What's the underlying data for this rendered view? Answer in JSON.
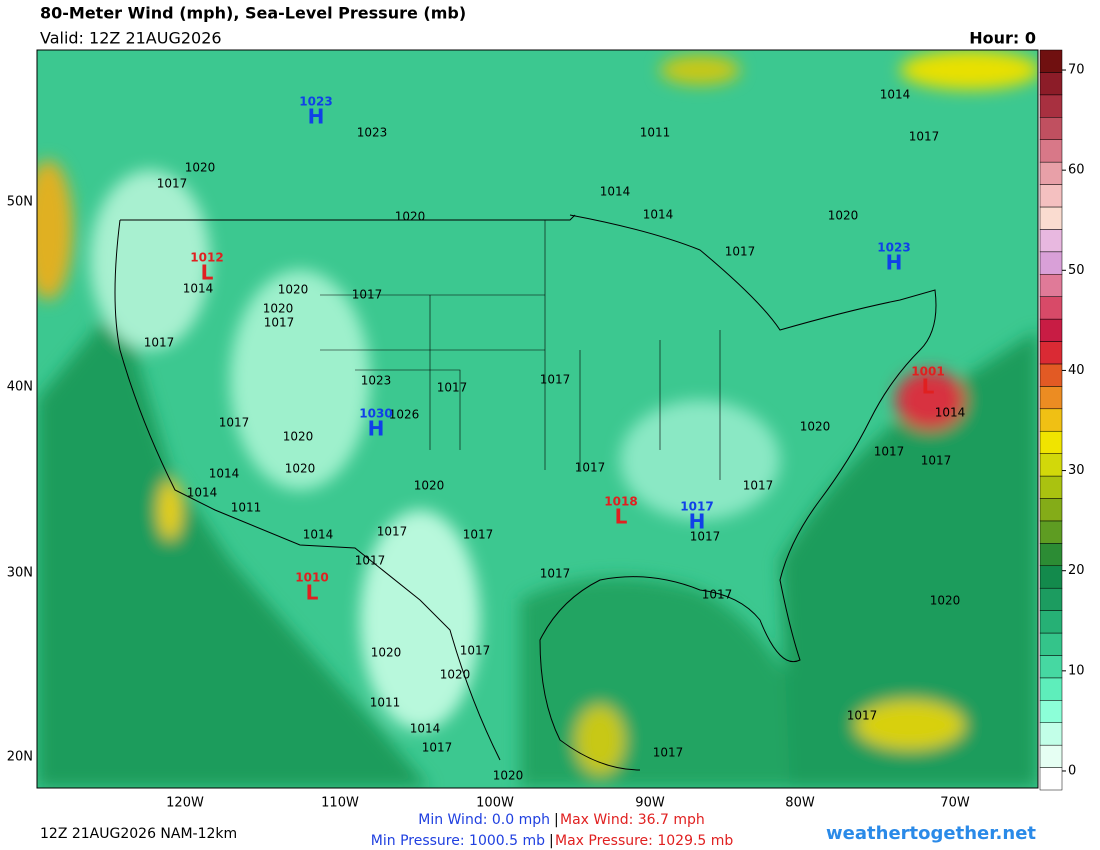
{
  "header": {
    "title": "80-Meter Wind (mph), Sea-Level Pressure (mb)",
    "valid": "Valid: 12Z 21AUG2026",
    "hour": "Hour: 0"
  },
  "map": {
    "lat_labels": [
      "50N",
      "40N",
      "30N",
      "20N"
    ],
    "lon_labels": [
      "120W",
      "110W",
      "100W",
      "90W",
      "80W",
      "70W"
    ],
    "centers": [
      {
        "letter": "H",
        "value": 1023
      },
      {
        "letter": "H",
        "value": 1023
      },
      {
        "letter": "L",
        "value": 1012
      },
      {
        "letter": "L",
        "value": 1001
      },
      {
        "letter": "H",
        "value": 1030
      },
      {
        "letter": "L",
        "value": 1018
      },
      {
        "letter": "H",
        "value": 1017
      },
      {
        "letter": "L",
        "value": 1010
      }
    ],
    "isobar_labels": [
      1023,
      1011,
      1014,
      1017,
      1020,
      1017,
      1014,
      1014,
      1020,
      1020,
      1017,
      1014,
      1020,
      1020,
      1017,
      1017,
      1017,
      1023,
      1017,
      1017,
      1026,
      1017,
      1020,
      1020,
      1014,
      1017,
      1017,
      1017,
      1020,
      1014,
      1020,
      1017,
      1014,
      1011,
      1014,
      1017,
      1017,
      1017,
      1017,
      1017,
      1017,
      1020,
      1020,
      1017,
      1020,
      1011,
      1017,
      1014,
      1017,
      1017,
      1020
    ]
  },
  "colorbar": {
    "lim": [
      -1.9,
      72
    ],
    "ticks": [
      0,
      10,
      20,
      30,
      40,
      50,
      60,
      70
    ],
    "colors": [
      "#ffffff",
      "#e6fff3",
      "#c2ffe8",
      "#8cffd8",
      "#5eeebb",
      "#46d8a2",
      "#34c48a",
      "#26b075",
      "#1c9c60",
      "#138a4c",
      "#2c8c34",
      "#5e9c22",
      "#84ac18",
      "#aac210",
      "#d2d80a",
      "#f0e400",
      "#f0c014",
      "#ec8c22",
      "#e25a24",
      "#da2a34",
      "#c81c44",
      "#d84a68",
      "#e07a98",
      "#d9a0d8",
      "#e8b8e0",
      "#fadcd0",
      "#f4c0c0",
      "#e8a0a8",
      "#d87888",
      "#c05060",
      "#a83040",
      "#8c1c28",
      "#701010"
    ]
  },
  "footer": {
    "run": "12Z 21AUG2026 NAM-12km",
    "min_wind": "Min Wind:   0.0 mph",
    "max_wind": "Max Wind:  36.7 mph",
    "separator": "|",
    "min_pressure": "Min Pressure: 1000.5 mb",
    "max_pressure": "Max Pressure: 1029.5 mb",
    "site": "weathertogether.net"
  }
}
